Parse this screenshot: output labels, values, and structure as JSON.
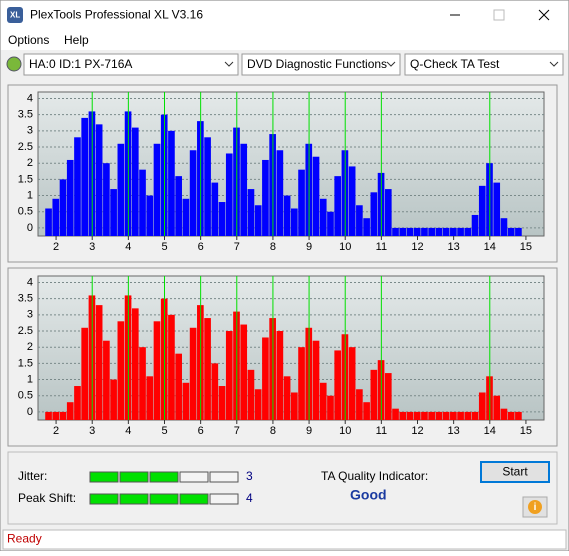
{
  "window": {
    "title": "PlexTools Professional XL V3.16"
  },
  "menu": [
    "Options",
    "Help"
  ],
  "toolbar": {
    "drive": "HA:0 ID:1  PX-716A",
    "function": "DVD Diagnostic Functions",
    "test": "Q-Check TA Test"
  },
  "charts": [
    {
      "type": "bar",
      "color": "#0000ff",
      "marker_color": "#00e000",
      "x": [
        1.8,
        2,
        2.2,
        2.4,
        2.6,
        2.8,
        3,
        3.2,
        3.4,
        3.6,
        3.8,
        4,
        4.2,
        4.4,
        4.6,
        4.8,
        5,
        5.2,
        5.4,
        5.6,
        5.8,
        6,
        6.2,
        6.4,
        6.6,
        6.8,
        7,
        7.2,
        7.4,
        7.6,
        7.8,
        8,
        8.2,
        8.4,
        8.6,
        8.8,
        9,
        9.2,
        9.4,
        9.6,
        9.8,
        10,
        10.2,
        10.4,
        10.6,
        10.8,
        11,
        11.2,
        11.4,
        11.6,
        11.8,
        12,
        12.2,
        12.4,
        12.6,
        12.8,
        13,
        13.2,
        13.4,
        13.6,
        13.8,
        14,
        14.2,
        14.4,
        14.6,
        14.8
      ],
      "values": [
        0.6,
        0.9,
        1.5,
        2.1,
        2.8,
        3.4,
        3.6,
        3.2,
        2.0,
        1.2,
        2.6,
        3.6,
        3.1,
        1.8,
        1.0,
        2.6,
        3.5,
        3.0,
        1.6,
        0.9,
        2.4,
        3.3,
        2.8,
        1.4,
        0.8,
        2.3,
        3.1,
        2.6,
        1.2,
        0.7,
        2.1,
        2.9,
        2.4,
        1.0,
        0.6,
        1.8,
        2.6,
        2.2,
        0.9,
        0.5,
        1.6,
        2.4,
        1.9,
        0.7,
        0.3,
        1.1,
        1.7,
        1.2,
        0,
        0,
        0,
        0,
        0,
        0,
        0,
        0,
        0,
        0,
        0,
        0.4,
        1.3,
        2.0,
        1.4,
        0.3,
        0,
        0
      ],
      "markers": [
        3,
        4,
        5,
        6,
        7,
        8,
        9,
        10,
        11,
        14
      ],
      "xlim": [
        1.5,
        15.5
      ],
      "ylim": [
        -0.25,
        4.2
      ],
      "xticks": [
        2,
        3,
        4,
        5,
        6,
        7,
        8,
        9,
        10,
        11,
        12,
        13,
        14,
        15
      ],
      "yticks": [
        0,
        0.5,
        1,
        1.5,
        2,
        2.5,
        3,
        3.5,
        4
      ],
      "grid": true
    },
    {
      "type": "bar",
      "color": "#ff0000",
      "marker_color": "#00e000",
      "x": [
        1.8,
        2,
        2.2,
        2.4,
        2.6,
        2.8,
        3,
        3.2,
        3.4,
        3.6,
        3.8,
        4,
        4.2,
        4.4,
        4.6,
        4.8,
        5,
        5.2,
        5.4,
        5.6,
        5.8,
        6,
        6.2,
        6.4,
        6.6,
        6.8,
        7,
        7.2,
        7.4,
        7.6,
        7.8,
        8,
        8.2,
        8.4,
        8.6,
        8.8,
        9,
        9.2,
        9.4,
        9.6,
        9.8,
        10,
        10.2,
        10.4,
        10.6,
        10.8,
        11,
        11.2,
        11.4,
        11.6,
        11.8,
        12,
        12.2,
        12.4,
        12.6,
        12.8,
        13,
        13.2,
        13.4,
        13.6,
        13.8,
        14,
        14.2,
        14.4,
        14.6,
        14.8
      ],
      "values": [
        0,
        0,
        0,
        0.3,
        0.8,
        2.6,
        3.6,
        3.3,
        2.2,
        1.0,
        2.8,
        3.6,
        3.2,
        2.0,
        1.1,
        2.8,
        3.5,
        3.0,
        1.8,
        0.9,
        2.6,
        3.3,
        2.9,
        1.5,
        0.8,
        2.5,
        3.1,
        2.7,
        1.3,
        0.7,
        2.3,
        2.9,
        2.5,
        1.1,
        0.6,
        2.0,
        2.6,
        2.2,
        0.9,
        0.5,
        1.9,
        2.4,
        2.0,
        0.7,
        0.3,
        1.3,
        1.6,
        1.2,
        0.1,
        0,
        0,
        0,
        0,
        0,
        0,
        0,
        0,
        0,
        0,
        0,
        0.6,
        1.1,
        0.5,
        0.1,
        0,
        0
      ],
      "markers": [
        3,
        4,
        5,
        6,
        7,
        8,
        9,
        10,
        11,
        14
      ],
      "xlim": [
        1.5,
        15.5
      ],
      "ylim": [
        -0.25,
        4.2
      ],
      "xticks": [
        2,
        3,
        4,
        5,
        6,
        7,
        8,
        9,
        10,
        11,
        12,
        13,
        14,
        15
      ],
      "yticks": [
        0,
        0.5,
        1,
        1.5,
        2,
        2.5,
        3,
        3.5,
        4
      ],
      "grid": true
    }
  ],
  "results": {
    "jitter_label": "Jitter:",
    "jitter": 3,
    "peak_shift_label": "Peak Shift:",
    "peak_shift": 4,
    "quality_label": "TA Quality Indicator:",
    "quality": "Good",
    "start": "Start"
  },
  "status": "Ready"
}
